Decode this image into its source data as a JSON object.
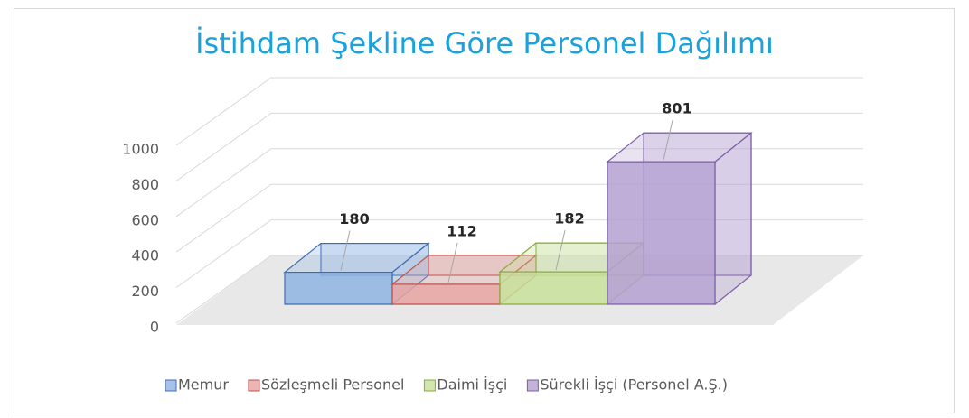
{
  "chart_data": {
    "type": "bar3d",
    "title": "İstihdam Şekline Göre Personel Dağılımı",
    "categories": [
      "Memur",
      "Sözleşmeli Personel",
      "Daimi İşçi",
      "Sürekli İşçi (Personel A.Ş.)"
    ],
    "values": [
      180,
      112,
      182,
      801
    ],
    "colors": [
      "#8fb4e3",
      "#e6a3a0",
      "#c8e09a",
      "#b4a0d0"
    ],
    "edge_colors": [
      "#3d6db5",
      "#c0504d",
      "#8aab3e",
      "#7b5ea7"
    ],
    "ylim": [
      0,
      1000
    ],
    "yticks": [
      0,
      200,
      400,
      600,
      800,
      1000
    ],
    "grid": true,
    "legend": "bottom"
  }
}
